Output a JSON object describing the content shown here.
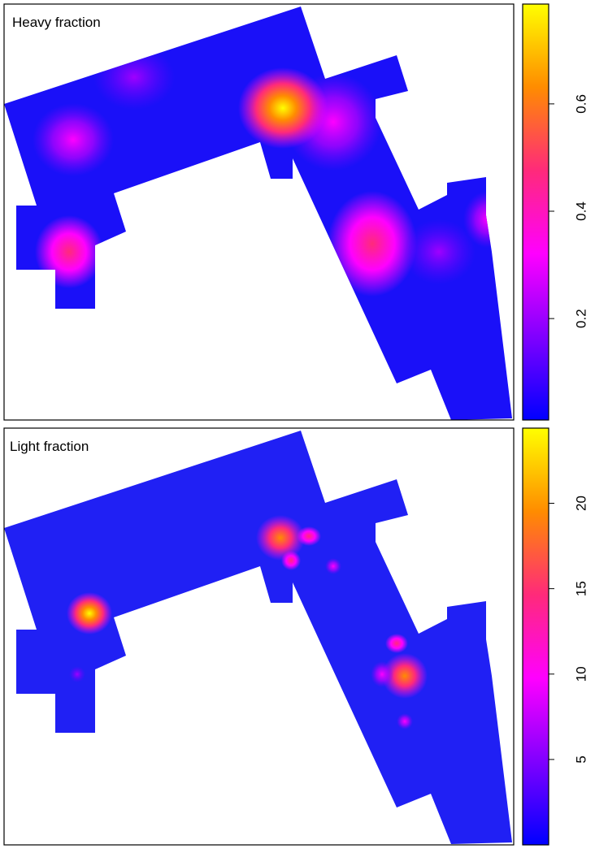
{
  "chart_data": [
    {
      "type": "heatmap",
      "title": "Heavy fraction",
      "colormap": [
        "#0000ff",
        "#8000ff",
        "#ff00ff",
        "#ff2a7a",
        "#ff8c00",
        "#ffff00"
      ],
      "ylim": [
        0.011,
        0.786
      ],
      "yticks": [
        0.2,
        0.4,
        0.6
      ]
    },
    {
      "type": "heatmap",
      "title": "Light fraction",
      "colormap": [
        "#0000ff",
        "#8000ff",
        "#ff00ff",
        "#ff2a7a",
        "#ff8c00",
        "#ffff00"
      ],
      "ylim": [
        0,
        24.4
      ],
      "yticks": [
        5,
        10,
        15,
        20
      ]
    }
  ]
}
